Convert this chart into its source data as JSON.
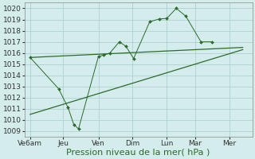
{
  "background_color": "#d4ecec",
  "grid_color": "#a8cccc",
  "line_color": "#2a6b2a",
  "marker_color": "#2a6b2a",
  "ylabel_ticks": [
    1009,
    1010,
    1011,
    1012,
    1013,
    1014,
    1015,
    1016,
    1017,
    1018,
    1019,
    1020
  ],
  "xlabel": "Pression niveau de la mer( hPa )",
  "xlabels": [
    "Ve6am",
    "Jeu",
    "Ven",
    "Dim",
    "Lun",
    "Mar",
    "Mer"
  ],
  "xlim": [
    0,
    12
  ],
  "ylim": [
    1008.5,
    1020.5
  ],
  "series1_x": [
    0.3,
    1.8,
    2.3,
    2.6,
    2.85,
    3.9,
    4.15,
    4.5,
    5.0,
    5.35,
    5.75,
    6.6,
    7.1,
    7.5,
    8.0,
    8.5,
    9.3,
    9.9
  ],
  "series1_y": [
    1015.6,
    1012.8,
    1011.1,
    1009.6,
    1009.2,
    1015.7,
    1015.8,
    1016.0,
    1017.0,
    1016.6,
    1015.5,
    1018.8,
    1019.05,
    1019.1,
    1020.0,
    1019.3,
    1017.0,
    1017.0
  ],
  "trend1_x": [
    0.3,
    11.5
  ],
  "trend1_y": [
    1015.6,
    1016.5
  ],
  "trend2_x": [
    0.3,
    11.5
  ],
  "trend2_y": [
    1010.5,
    1016.3
  ],
  "xtick_pos": [
    0.3,
    2.05,
    3.9,
    5.7,
    7.5,
    9.0,
    10.8
  ],
  "xlabel_fontsize": 8,
  "tick_fontsize": 6.5
}
